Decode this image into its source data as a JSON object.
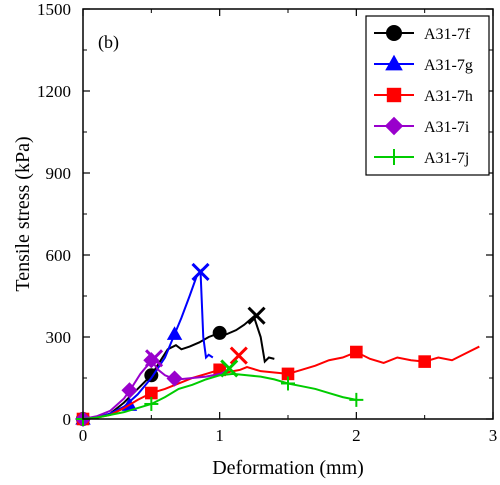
{
  "chart_data": {
    "type": "line",
    "panel_label": "(b)",
    "xlabel": "Deformation (mm)",
    "ylabel": "Tensile stress (kPa)",
    "xlim": [
      0,
      3
    ],
    "ylim": [
      0,
      1500
    ],
    "x_ticks": [
      0,
      1,
      2,
      3
    ],
    "y_ticks": [
      0,
      300,
      600,
      900,
      1200,
      1500
    ],
    "grid": false,
    "legend_position": "top-right",
    "series": [
      {
        "name": "A31-7f",
        "color": "#000000",
        "marker": "circle",
        "x": [
          0,
          0.05,
          0.12,
          0.2,
          0.3,
          0.4,
          0.5,
          0.55,
          0.62,
          0.68,
          0.72,
          0.78,
          0.85,
          0.92,
          1.0,
          1.05,
          1.12,
          1.18,
          1.25,
          1.3,
          1.33,
          1.36,
          1.4
        ],
        "y": [
          0,
          3,
          8,
          20,
          60,
          110,
          160,
          200,
          255,
          270,
          255,
          265,
          280,
          300,
          315,
          310,
          325,
          345,
          375,
          300,
          210,
          225,
          220
        ],
        "markers_x": [
          0,
          0.5,
          1.0
        ],
        "markers_y": [
          0,
          160,
          315
        ],
        "end_x": 1.27,
        "end_y": 378
      },
      {
        "name": "A31-7g",
        "color": "#0000ff",
        "marker": "triangle",
        "x": [
          0,
          0.1,
          0.2,
          0.3,
          0.4,
          0.5,
          0.6,
          0.67,
          0.72,
          0.78,
          0.83,
          0.86,
          0.88,
          0.9,
          0.92,
          0.95
        ],
        "y": [
          0,
          5,
          20,
          45,
          90,
          150,
          225,
          310,
          370,
          450,
          520,
          540,
          300,
          225,
          235,
          225
        ],
        "markers_x": [
          0,
          0.34,
          0.67
        ],
        "markers_y": [
          0,
          50,
          310
        ],
        "end_x": 0.86,
        "end_y": 538
      },
      {
        "name": "A31-7h",
        "color": "#ff0000",
        "marker": "square",
        "x": [
          0,
          0.1,
          0.2,
          0.3,
          0.4,
          0.5,
          0.6,
          0.7,
          0.8,
          0.9,
          1.0,
          1.05,
          1.1,
          1.15,
          1.2,
          1.3,
          1.4,
          1.5,
          1.6,
          1.7,
          1.8,
          1.9,
          2.0,
          2.1,
          2.2,
          2.3,
          2.4,
          2.5,
          2.6,
          2.7,
          2.8,
          2.9
        ],
        "y": [
          0,
          5,
          15,
          40,
          70,
          95,
          110,
          130,
          150,
          165,
          180,
          170,
          175,
          180,
          190,
          175,
          170,
          165,
          180,
          195,
          215,
          225,
          245,
          220,
          205,
          225,
          215,
          210,
          225,
          215,
          240,
          265
        ],
        "markers_x": [
          0,
          0.5,
          1.0,
          1.5,
          2.0,
          2.5
        ],
        "markers_y": [
          0,
          95,
          180,
          165,
          245,
          210
        ],
        "end_x": 1.14,
        "end_y": 232
      },
      {
        "name": "A31-7i",
        "color": "#9900cc",
        "marker": "diamond",
        "x": [
          0,
          0.1,
          0.2,
          0.3,
          0.35,
          0.42,
          0.47,
          0.5,
          0.55,
          0.6,
          0.65,
          0.7,
          0.8,
          0.9,
          1.0,
          1.05
        ],
        "y": [
          0,
          10,
          30,
          75,
          110,
          165,
          195,
          215,
          180,
          160,
          150,
          145,
          150,
          155,
          165,
          175
        ],
        "markers_x": [
          0,
          0.34,
          0.5,
          0.67
        ],
        "markers_y": [
          0,
          105,
          215,
          148
        ],
        "end_x": 0.52,
        "end_y": 222
      },
      {
        "name": "A31-7j",
        "color": "#00cc00",
        "marker": "plus",
        "x": [
          0,
          0.1,
          0.2,
          0.3,
          0.4,
          0.5,
          0.6,
          0.7,
          0.8,
          0.9,
          1.0,
          1.1,
          1.2,
          1.3,
          1.4,
          1.5,
          1.6,
          1.7,
          1.8,
          1.9,
          2.0
        ],
        "y": [
          0,
          5,
          15,
          25,
          40,
          55,
          80,
          110,
          125,
          145,
          160,
          165,
          160,
          155,
          145,
          130,
          120,
          110,
          95,
          80,
          70
        ],
        "markers_x": [
          0,
          0.5,
          1.5,
          2.0
        ],
        "markers_y": [
          0,
          55,
          130,
          70
        ],
        "end_x": 1.07,
        "end_y": 185
      }
    ]
  }
}
